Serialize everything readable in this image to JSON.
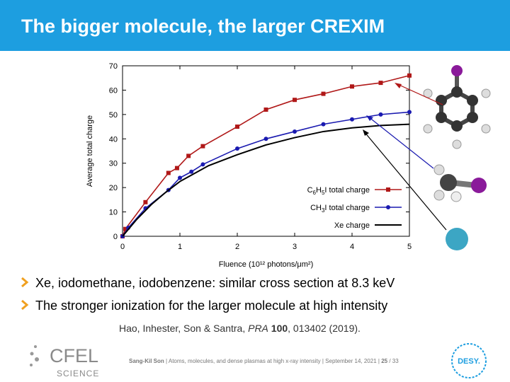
{
  "header": {
    "title": "The bigger molecule, the larger CREXIM"
  },
  "chart_data": {
    "type": "line",
    "xlabel": "Fluence (10¹² photons/μm²)",
    "ylabel": "Average total charge",
    "xlim": [
      0,
      5
    ],
    "ylim": [
      0,
      70
    ],
    "xticks": [
      0,
      1,
      2,
      3,
      4,
      5
    ],
    "yticks": [
      0,
      10,
      20,
      30,
      40,
      50,
      60,
      70
    ],
    "legend": "lower right",
    "series": [
      {
        "name": "C6H5I total charge",
        "color": "#b01818",
        "marker": "square",
        "x": [
          0,
          0.05,
          0.4,
          0.8,
          0.95,
          1.15,
          1.4,
          2,
          2.5,
          3,
          3.5,
          4,
          4.5,
          5
        ],
        "values": [
          0,
          3,
          14,
          26,
          28,
          33,
          37,
          45,
          52,
          56,
          58.5,
          61.5,
          63,
          66
        ]
      },
      {
        "name": "CH3I total charge",
        "color": "#1a1ab0",
        "marker": "circle",
        "x": [
          0,
          0.1,
          0.4,
          0.8,
          1,
          1.2,
          1.4,
          2,
          2.5,
          3,
          3.5,
          4,
          4.5,
          5
        ],
        "values": [
          0,
          3.5,
          11.5,
          19,
          24,
          26.5,
          29.5,
          36,
          40,
          43,
          46,
          48,
          50,
          51
        ]
      },
      {
        "name": "Xe charge",
        "color": "#000000",
        "marker": "none",
        "x": [
          0,
          0.25,
          0.5,
          0.75,
          1,
          1.5,
          2,
          2.5,
          3,
          3.5,
          4,
          4.5,
          5
        ],
        "values": [
          0,
          7,
          13,
          18,
          22.5,
          29,
          33.5,
          37.5,
          40.5,
          43,
          44.5,
          45.5,
          46
        ]
      }
    ]
  },
  "bullets": [
    "Xe, iodomethane, iodobenzene: similar cross section at 8.3 keV",
    "The stronger ionization for the larger molecule at high intensity"
  ],
  "citation": {
    "authors": "Hao, Inhester, Son & Santra, ",
    "journal": "PRA",
    "volume": "100",
    "rest": ", 013402 (2019)."
  },
  "footer": {
    "author": "Sang-Kil Son",
    "text": " | Atoms, molecules, and dense plasmas at high x-ray intensity | September 14, 2021 | ",
    "page": "25",
    "total": " / 33"
  },
  "logos": {
    "left": "CFEL",
    "left_sub": "SCIENCE",
    "right": "DESY."
  }
}
